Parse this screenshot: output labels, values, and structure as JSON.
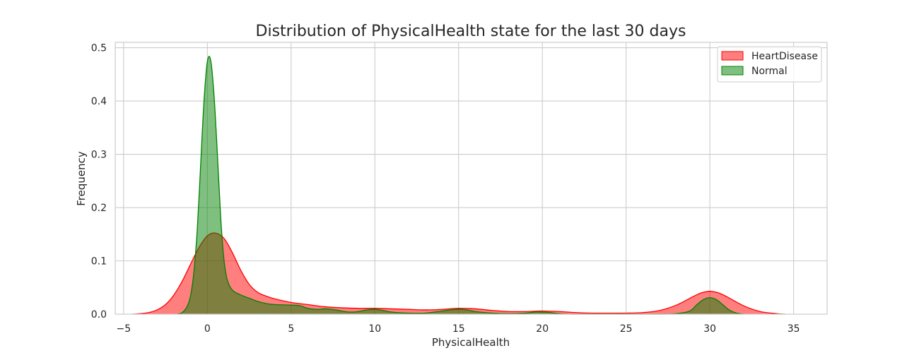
{
  "chart_data": {
    "type": "area",
    "title": "Distribution of PhysicalHealth state for the last 30 days",
    "xlabel": "PhysicalHealth",
    "ylabel": "Frequency",
    "xlim": [
      -5.5,
      37
    ],
    "ylim": [
      0,
      0.51
    ],
    "xticks": [
      -5,
      0,
      5,
      10,
      15,
      20,
      25,
      30,
      35
    ],
    "xtick_labels": [
      "−5",
      "0",
      "5",
      "10",
      "15",
      "20",
      "25",
      "30",
      "35"
    ],
    "yticks": [
      0.0,
      0.1,
      0.2,
      0.3,
      0.4,
      0.5
    ],
    "ytick_labels": [
      "0.0",
      "0.1",
      "0.2",
      "0.3",
      "0.4",
      "0.5"
    ],
    "grid": true,
    "legend": "top-right",
    "series": [
      {
        "name": "HeartDisease",
        "color": "#ff0000",
        "fill_opacity": 0.5,
        "x": [
          -4.5,
          -4.0,
          -3.5,
          -3.0,
          -2.5,
          -2.0,
          -1.5,
          -1.0,
          -0.5,
          0.0,
          0.5,
          1.0,
          1.5,
          2.0,
          2.5,
          3.0,
          3.5,
          4.0,
          5.0,
          6.0,
          7.0,
          8.0,
          9.0,
          10.0,
          11.0,
          12.0,
          13.0,
          14.0,
          15.0,
          16.0,
          17.0,
          18.0,
          19.0,
          20.0,
          21.0,
          22.0,
          23.0,
          24.0,
          25.0,
          26.0,
          27.0,
          28.0,
          29.0,
          29.5,
          30.0,
          30.5,
          31.0,
          32.0,
          33.0,
          34.0,
          34.5
        ],
        "y": [
          0.0,
          0.001,
          0.003,
          0.008,
          0.018,
          0.036,
          0.062,
          0.094,
          0.125,
          0.147,
          0.152,
          0.142,
          0.115,
          0.082,
          0.056,
          0.041,
          0.034,
          0.029,
          0.022,
          0.018,
          0.014,
          0.012,
          0.011,
          0.011,
          0.01,
          0.009,
          0.008,
          0.009,
          0.011,
          0.01,
          0.007,
          0.005,
          0.005,
          0.006,
          0.005,
          0.003,
          0.002,
          0.002,
          0.002,
          0.003,
          0.007,
          0.017,
          0.033,
          0.04,
          0.043,
          0.04,
          0.033,
          0.016,
          0.005,
          0.001,
          0.0
        ]
      },
      {
        "name": "Normal",
        "color": "#008000",
        "fill_opacity": 0.5,
        "x": [
          -1.8,
          -1.5,
          -1.2,
          -1.0,
          -0.8,
          -0.6,
          -0.4,
          -0.2,
          0.0,
          0.2,
          0.4,
          0.6,
          0.8,
          1.0,
          1.2,
          1.5,
          2.0,
          2.5,
          3.0,
          3.5,
          4.0,
          5.0,
          5.5,
          6.0,
          6.5,
          7.0,
          7.5,
          8.0,
          8.5,
          9.0,
          9.5,
          10.0,
          10.5,
          11.0,
          12.0,
          13.0,
          14.0,
          14.5,
          15.0,
          15.5,
          16.0,
          17.0,
          18.0,
          19.0,
          19.5,
          20.0,
          20.5,
          21.0,
          22.0,
          26.0,
          27.0,
          28.0,
          28.8,
          29.2,
          29.6,
          30.0,
          30.4,
          30.8,
          31.2,
          31.6,
          32.0
        ],
        "y": [
          0.0,
          0.003,
          0.015,
          0.035,
          0.08,
          0.16,
          0.28,
          0.4,
          0.474,
          0.476,
          0.41,
          0.3,
          0.18,
          0.1,
          0.063,
          0.045,
          0.036,
          0.03,
          0.024,
          0.02,
          0.018,
          0.017,
          0.016,
          0.011,
          0.009,
          0.01,
          0.009,
          0.006,
          0.004,
          0.005,
          0.008,
          0.009,
          0.007,
          0.004,
          0.002,
          0.002,
          0.006,
          0.008,
          0.009,
          0.008,
          0.005,
          0.002,
          0.001,
          0.002,
          0.004,
          0.004,
          0.003,
          0.001,
          0.0,
          0.0,
          0.0,
          0.001,
          0.006,
          0.017,
          0.027,
          0.031,
          0.027,
          0.017,
          0.007,
          0.002,
          0.0
        ]
      }
    ]
  }
}
